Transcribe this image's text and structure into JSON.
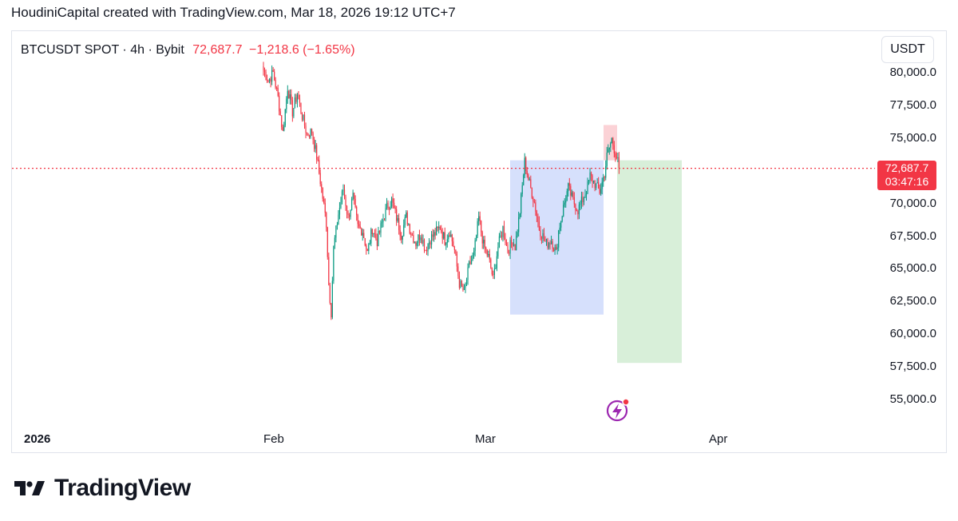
{
  "header": {
    "attribution": "HoudiniCapital created with TradingView.com, Mar 18, 2026 19:12 UTC+7"
  },
  "symbol": {
    "title": "BTCUSDT SPOT · 4h · Bybit",
    "last_price": "72,687.7",
    "change": "−1,218.6 (−1.65%)"
  },
  "currency_button": {
    "label": "USDT"
  },
  "last_price_tag": {
    "price": "72,687.7",
    "countdown": "03:47:16"
  },
  "footer": {
    "brand": "TradingView"
  },
  "colors": {
    "up": "#089981",
    "down": "#f23645",
    "lastline": "#f23645",
    "rangebox": "#d4defc",
    "target": "#d8efd9",
    "stop": "#fbd2d6",
    "icon": "#9c27b0"
  },
  "chart_data": {
    "type": "candlestick",
    "symbol": "BTCUSDT",
    "timeframe": "4h",
    "exchange": "Bybit",
    "y_axis": {
      "min": 55000,
      "max": 80000,
      "ticks": [
        "80,000.0",
        "77,500.0",
        "75,000.0",
        "72,500.0",
        "70,000.0",
        "67,500.0",
        "65,000.0",
        "62,500.0",
        "60,000.0",
        "57,500.0",
        "55,000.0"
      ]
    },
    "x_axis": {
      "ticks": [
        {
          "label": "2026"
        },
        {
          "label": "Feb"
        },
        {
          "label": "Mar"
        },
        {
          "label": "Apr"
        }
      ]
    },
    "last_price": 72687.7,
    "price_path": [
      [
        0,
        80200
      ],
      [
        4,
        79400
      ],
      [
        8,
        80000
      ],
      [
        12,
        78100
      ],
      [
        16,
        75400
      ],
      [
        20,
        78900
      ],
      [
        24,
        77000
      ],
      [
        28,
        78400
      ],
      [
        32,
        76700
      ],
      [
        36,
        75300
      ],
      [
        40,
        75500
      ],
      [
        44,
        73600
      ],
      [
        48,
        71100
      ],
      [
        52,
        68500
      ],
      [
        54,
        63800
      ],
      [
        56,
        61700
      ],
      [
        58,
        66600
      ],
      [
        62,
        69200
      ],
      [
        66,
        71100
      ],
      [
        70,
        68900
      ],
      [
        74,
        70500
      ],
      [
        78,
        68200
      ],
      [
        82,
        67900
      ],
      [
        86,
        66200
      ],
      [
        90,
        68100
      ],
      [
        94,
        67100
      ],
      [
        98,
        68500
      ],
      [
        102,
        69700
      ],
      [
        106,
        70200
      ],
      [
        110,
        68900
      ],
      [
        114,
        67600
      ],
      [
        118,
        69000
      ],
      [
        122,
        67800
      ],
      [
        126,
        67000
      ],
      [
        130,
        67700
      ],
      [
        134,
        66500
      ],
      [
        138,
        67300
      ],
      [
        142,
        67700
      ],
      [
        146,
        68200
      ],
      [
        150,
        67200
      ],
      [
        154,
        67900
      ],
      [
        158,
        66400
      ],
      [
        162,
        63900
      ],
      [
        166,
        63200
      ],
      [
        170,
        65200
      ],
      [
        174,
        66100
      ],
      [
        178,
        68900
      ],
      [
        182,
        66800
      ],
      [
        186,
        65900
      ],
      [
        190,
        64200
      ],
      [
        194,
        66700
      ],
      [
        198,
        68100
      ],
      [
        202,
        66400
      ],
      [
        206,
        67200
      ],
      [
        208,
        66700
      ],
      [
        212,
        69400
      ],
      [
        216,
        73200
      ],
      [
        220,
        71500
      ],
      [
        224,
        70100
      ],
      [
        228,
        68100
      ],
      [
        232,
        67300
      ],
      [
        234,
        66900
      ],
      [
        238,
        67200
      ],
      [
        242,
        66200
      ],
      [
        244,
        67900
      ],
      [
        248,
        69700
      ],
      [
        252,
        71200
      ],
      [
        256,
        70200
      ],
      [
        260,
        69500
      ],
      [
        264,
        70300
      ],
      [
        268,
        71300
      ],
      [
        270,
        72100
      ],
      [
        274,
        71500
      ],
      [
        278,
        70900
      ],
      [
        282,
        72300
      ],
      [
        284,
        73600
      ],
      [
        288,
        74900
      ],
      [
        290,
        74200
      ],
      [
        292,
        73600
      ],
      [
        294,
        72687.7
      ]
    ],
    "annotations": {
      "range_box": {
        "from": 61500,
        "to": 73300
      },
      "long_target_zone": {
        "from": 57800,
        "to": 73300
      },
      "stop_zone": {
        "from": 73300,
        "to": 76000
      }
    }
  }
}
